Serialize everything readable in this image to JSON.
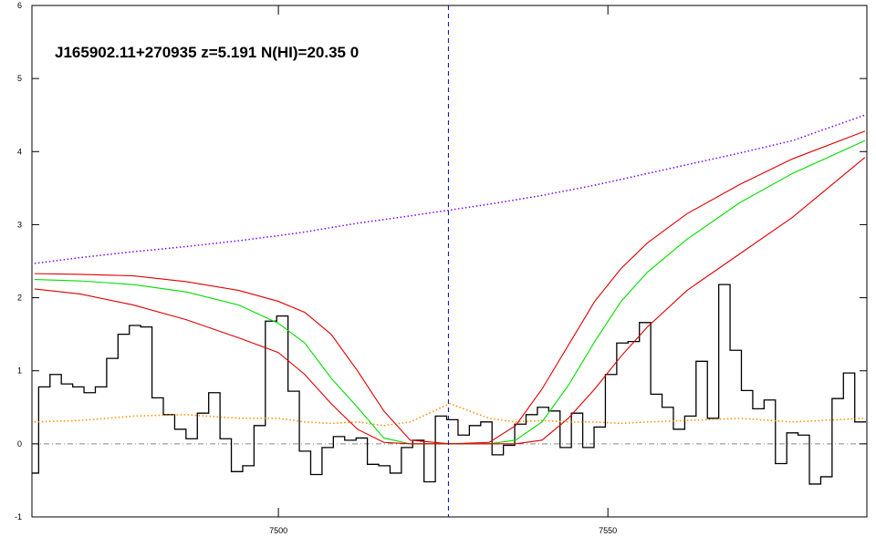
{
  "chart_data": {
    "type": "line",
    "title": "J165902.11+270935 z=5.191 N(HI)=20.35 0",
    "xlim": [
      7462.6,
      7589.3
    ],
    "ylim": [
      -1,
      6
    ],
    "xticks": [
      7500,
      7550
    ],
    "yticks": [
      -1,
      0,
      1,
      2,
      3,
      4,
      5,
      6
    ],
    "spectrum": {
      "color": "#000000",
      "bins": [
        7461.9,
        7463.62,
        7465.34,
        7467.06,
        7468.78,
        7470.5,
        7472.22,
        7473.94,
        7475.66,
        7477.38,
        7479.1,
        7480.82,
        7482.54,
        7484.26,
        7485.98,
        7487.7,
        7489.42,
        7491.14,
        7492.86,
        7494.58,
        7496.3,
        7498.02,
        7499.74,
        7501.46,
        7503.18,
        7504.9,
        7506.62,
        7508.34,
        7510.06,
        7511.78,
        7513.5,
        7515.22,
        7516.94,
        7518.66,
        7520.38,
        7522.1,
        7523.82,
        7525.54,
        7527.26,
        7528.98,
        7530.7,
        7532.42,
        7534.14,
        7535.86,
        7537.58,
        7539.3,
        7541.02,
        7542.74,
        7544.46,
        7546.18,
        7547.9,
        7549.62,
        7551.34,
        7553.06,
        7554.78,
        7556.5,
        7558.22,
        7559.94,
        7561.66,
        7563.38,
        7565.1,
        7566.82,
        7568.54,
        7570.26,
        7571.98,
        7573.7,
        7575.42,
        7577.14,
        7578.86,
        7580.58,
        7582.3,
        7584.02,
        7585.74,
        7587.46,
        7589.18
      ],
      "values": [
        -0.4,
        0.78,
        0.95,
        0.82,
        0.78,
        0.7,
        0.78,
        1.17,
        1.5,
        1.62,
        1.6,
        0.63,
        0.4,
        0.2,
        0.07,
        0.42,
        0.7,
        0.07,
        -0.38,
        -0.3,
        0.25,
        1.68,
        1.75,
        0.72,
        -0.1,
        -0.42,
        -0.05,
        0.1,
        0.05,
        0.08,
        -0.28,
        -0.3,
        -0.4,
        -0.05,
        0.05,
        -0.52,
        0.38,
        0.33,
        0.12,
        0.25,
        0.3,
        -0.15,
        -0.02,
        0.27,
        0.4,
        0.5,
        0.45,
        -0.05,
        0.42,
        -0.05,
        0.23,
        0.95,
        1.38,
        1.4,
        1.66,
        0.68,
        0.5,
        0.2,
        0.38,
        1.13,
        0.35,
        2.18,
        1.28,
        0.73,
        0.48,
        0.6,
        -0.27,
        0.15,
        0.12,
        -0.55,
        -0.45,
        0.62,
        0.97,
        0.3
      ]
    },
    "x": [
      7463,
      7470,
      7478,
      7486,
      7494,
      7500,
      7504,
      7508,
      7512,
      7516,
      7520,
      7526,
      7532,
      7536,
      7540,
      7544,
      7548,
      7552,
      7556,
      7562,
      7570,
      7578,
      7589
    ],
    "series": [
      {
        "color": "#ff8c00",
        "style": "dotted",
        "values": [
          0.3,
          0.32,
          0.38,
          0.4,
          0.35,
          0.35,
          0.3,
          0.28,
          0.3,
          0.25,
          0.3,
          0.55,
          0.35,
          0.3,
          0.32,
          0.3,
          0.3,
          0.28,
          0.3,
          0.32,
          0.35,
          0.3,
          0.35
        ]
      },
      {
        "color": "#8000ff",
        "style": "dotted",
        "values": [
          2.47,
          2.55,
          2.63,
          2.7,
          2.78,
          2.85,
          2.9,
          2.96,
          3.02,
          3.07,
          3.12,
          3.2,
          3.28,
          3.34,
          3.4,
          3.47,
          3.54,
          3.62,
          3.7,
          3.82,
          3.98,
          4.15,
          4.5
        ]
      },
      {
        "color": "#dd0000",
        "style": "solid",
        "values": [
          2.33,
          2.32,
          2.3,
          2.22,
          2.1,
          1.95,
          1.8,
          1.5,
          1.0,
          0.45,
          0.05,
          0,
          0.02,
          0.25,
          0.75,
          1.35,
          1.95,
          2.4,
          2.75,
          3.15,
          3.55,
          3.9,
          4.28
        ]
      },
      {
        "color": "#00dd00",
        "style": "solid",
        "values": [
          2.25,
          2.23,
          2.18,
          2.08,
          1.9,
          1.65,
          1.38,
          0.9,
          0.5,
          0.08,
          0,
          0,
          0,
          0.05,
          0.3,
          0.8,
          1.4,
          1.95,
          2.35,
          2.8,
          3.3,
          3.7,
          4.15
        ]
      },
      {
        "color": "#dd0000",
        "style": "solid",
        "values": [
          2.12,
          2.05,
          1.9,
          1.7,
          1.45,
          1.25,
          0.95,
          0.55,
          0.2,
          0.02,
          0,
          0,
          0,
          0,
          0.05,
          0.35,
          0.75,
          1.2,
          1.6,
          2.1,
          2.6,
          3.1,
          3.92
        ]
      }
    ],
    "vline": {
      "value": 7525.8,
      "color": "#0000cc"
    },
    "hline": {
      "value": 0,
      "color": "#888888"
    }
  }
}
